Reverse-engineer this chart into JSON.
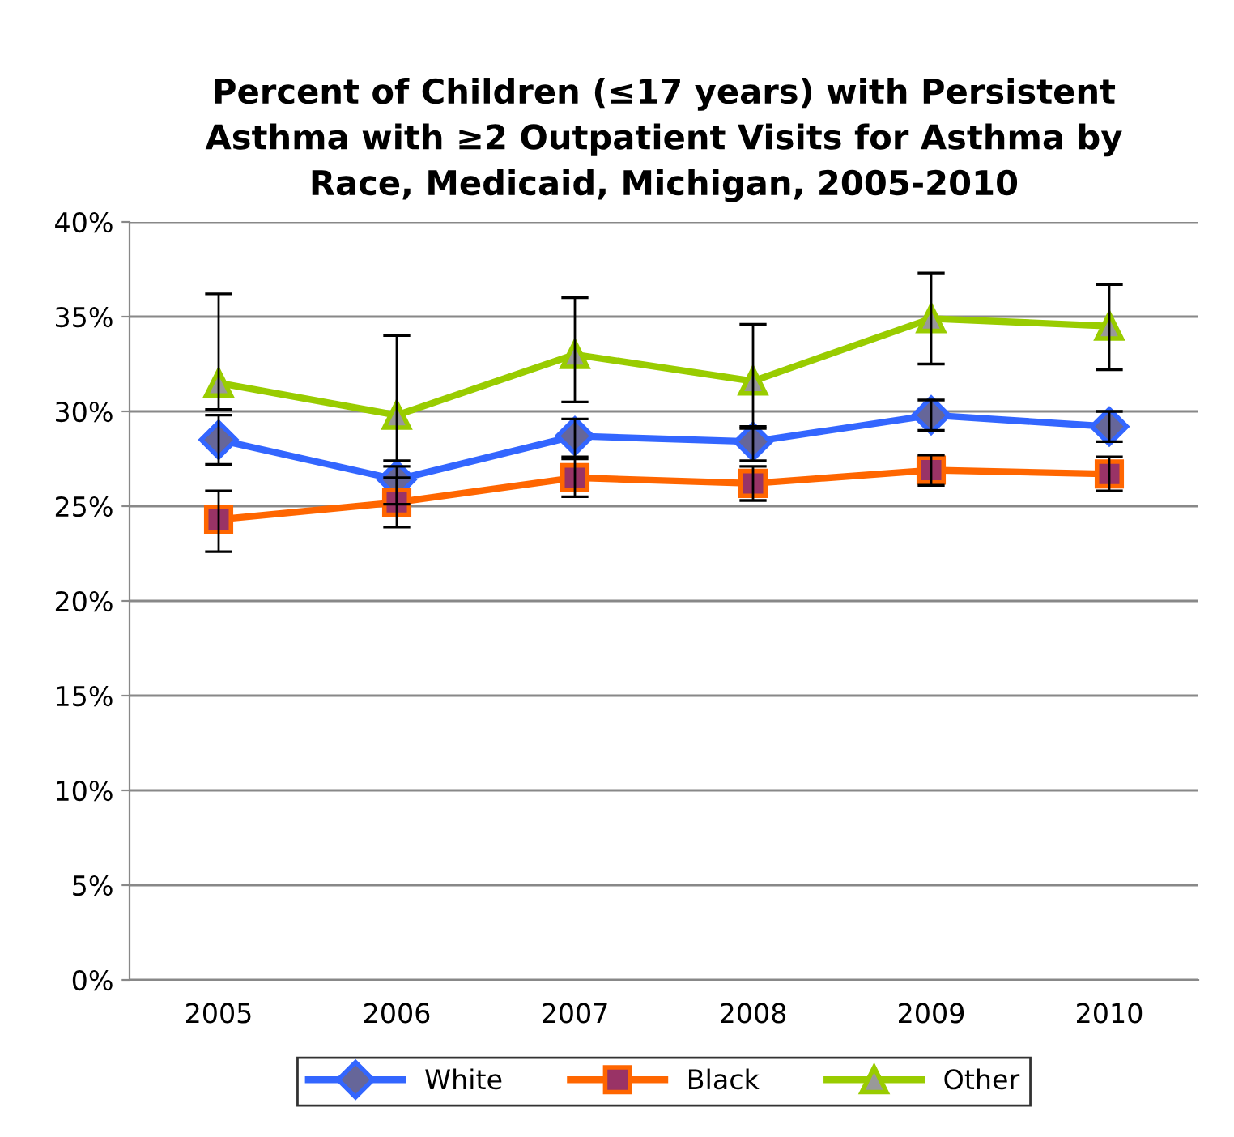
{
  "chart_data": {
    "type": "line",
    "title": "Percent of Children (≤17 years) with Persistent\nAsthma with ≥2 Outpatient Visits for Asthma by\nRace, Medicaid, Michigan, 2005-2010",
    "categories": [
      "2005",
      "2006",
      "2007",
      "2008",
      "2009",
      "2010"
    ],
    "series": [
      {
        "name": "White",
        "color": "#3366ff",
        "marker": "diamond",
        "values": [
          28.5,
          26.4,
          28.7,
          28.4,
          29.8,
          29.2
        ],
        "errors": [
          [
            27.2,
            29.8
          ],
          [
            25.1,
            27.1
          ],
          [
            27.6,
            29.6
          ],
          [
            27.4,
            29.1
          ],
          [
            29.0,
            30.6
          ],
          [
            28.4,
            30.0
          ]
        ]
      },
      {
        "name": "Black",
        "color": "#ff6600",
        "marker": "square",
        "values": [
          24.3,
          25.2,
          26.5,
          26.2,
          26.9,
          26.7
        ],
        "errors": [
          [
            22.6,
            25.8
          ],
          [
            23.9,
            26.5
          ],
          [
            25.5,
            27.5
          ],
          [
            25.3,
            27.1
          ],
          [
            26.1,
            27.7
          ],
          [
            25.8,
            27.6
          ]
        ]
      },
      {
        "name": "Other",
        "color": "#99cc00",
        "marker": "triangle",
        "values": [
          31.5,
          29.8,
          33.0,
          31.6,
          34.9,
          34.5
        ],
        "errors": [
          [
            30.1,
            36.2
          ],
          [
            27.4,
            34.0
          ],
          [
            30.5,
            36.0
          ],
          [
            29.2,
            34.6
          ],
          [
            32.5,
            37.3
          ],
          [
            32.2,
            36.7
          ]
        ]
      }
    ],
    "ylim": [
      0,
      40
    ],
    "yticks": [
      {
        "value": 0,
        "label": "0%"
      },
      {
        "value": 5,
        "label": "5%"
      },
      {
        "value": 10,
        "label": "10%"
      },
      {
        "value": 15,
        "label": "15%"
      },
      {
        "value": 20,
        "label": "20%"
      },
      {
        "value": 25,
        "label": "25%"
      },
      {
        "value": 30,
        "label": "30%"
      },
      {
        "value": 35,
        "label": "35%"
      },
      {
        "value": 40,
        "label": "40%"
      }
    ],
    "grid": "y",
    "legend": "bottom",
    "line_style": "solid"
  }
}
